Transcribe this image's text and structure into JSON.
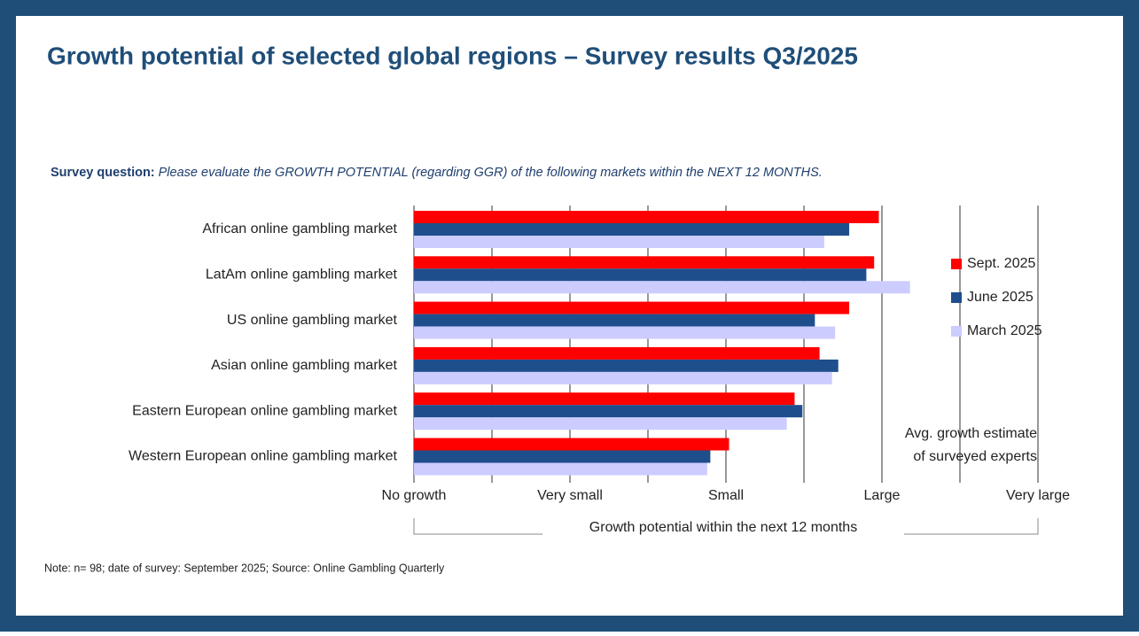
{
  "title": "Growth potential of selected global regions – Survey results Q3/2025",
  "chart_data": {
    "type": "hbar",
    "subtitle_label": "Survey question:",
    "subtitle": "Please evaluate the GROWTH POTENTIAL (regarding GGR) of the following markets within the NEXT 12 MONTHS.",
    "categories": [
      "African online gambling market",
      "LatAm online gambling market",
      "US online gambling market",
      "Asian online gambling market",
      "Eastern European online gambling market",
      "Western European online gambling market"
    ],
    "series": [
      {
        "name": "Sept. 2025",
        "color": "#ff0000",
        "values": [
          2.98,
          2.95,
          2.79,
          2.6,
          2.44,
          2.02
        ]
      },
      {
        "name": "June 2025",
        "color": "#1f4e8c",
        "values": [
          2.79,
          2.9,
          2.57,
          2.72,
          2.49,
          1.9
        ]
      },
      {
        "name": "March 2025",
        "color": "#ccccff",
        "values": [
          2.63,
          3.18,
          2.7,
          2.68,
          2.39,
          1.88
        ]
      }
    ],
    "xlim": [
      0,
      4
    ],
    "xticks": [
      {
        "value": 0,
        "label": "No growth"
      },
      {
        "value": 1,
        "label": "Very small"
      },
      {
        "value": 2,
        "label": "Small"
      },
      {
        "value": 3,
        "label": "Large"
      },
      {
        "value": 4,
        "label": "Very large"
      }
    ],
    "minor_xticks": [
      0.5,
      1.5,
      2.5,
      3.5
    ],
    "xlabel": "Growth potential within the next 12 months",
    "annotation": [
      "Avg. growth estimate",
      "of surveyed experts"
    ],
    "legend": "right",
    "note": "Note: n= 98; date of survey: September 2025; Source: Online Gambling Quarterly"
  }
}
